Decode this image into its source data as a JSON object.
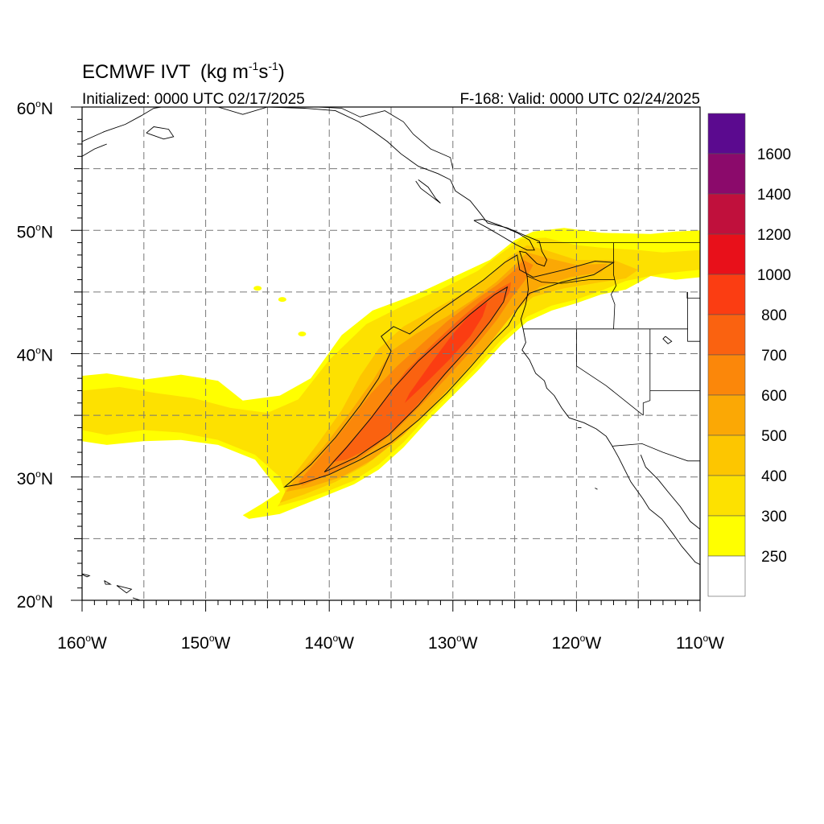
{
  "title": {
    "model": "ECMWF IVT",
    "units_open": "(kg m",
    "units_exp1": "-1",
    "units_mid": "s",
    "units_exp2": "-1",
    "units_close": ")"
  },
  "subtitle_left": "Initialized: 0000 UTC 02/17/2025",
  "subtitle_right": "F-168: Valid: 0000 UTC 02/24/2025",
  "lat_labels": [
    {
      "deg": "60",
      "hemi": "N",
      "value": 60
    },
    {
      "deg": "50",
      "hemi": "N",
      "value": 50
    },
    {
      "deg": "40",
      "hemi": "N",
      "value": 40
    },
    {
      "deg": "30",
      "hemi": "N",
      "value": 30
    },
    {
      "deg": "20",
      "hemi": "N",
      "value": 20
    }
  ],
  "lon_labels": [
    {
      "deg": "160",
      "hemi": "W",
      "value": -160
    },
    {
      "deg": "150",
      "hemi": "W",
      "value": -150
    },
    {
      "deg": "140",
      "hemi": "W",
      "value": -140
    },
    {
      "deg": "130",
      "hemi": "W",
      "value": -130
    },
    {
      "deg": "120",
      "hemi": "W",
      "value": -120
    },
    {
      "deg": "110",
      "hemi": "W",
      "value": -110
    }
  ],
  "map_extent": {
    "lon_min": -160,
    "lon_max": -110,
    "lat_min": 20,
    "lat_max": 60
  },
  "colorbar": {
    "labels": [
      "1600",
      "1400",
      "1200",
      "1000",
      "800",
      "700",
      "600",
      "500",
      "400",
      "300",
      "250"
    ],
    "colors": [
      "#5b0a8f",
      "#8b0a6b",
      "#c0103c",
      "#e8101a",
      "#fb3d12",
      "#fa6210",
      "#fb870a",
      "#fba805",
      "#fdc600",
      "#fde100",
      "#ffff00",
      "#ffffff"
    ]
  },
  "ivt_levels": [
    250,
    300,
    400,
    500,
    600,
    700,
    800
  ]
}
